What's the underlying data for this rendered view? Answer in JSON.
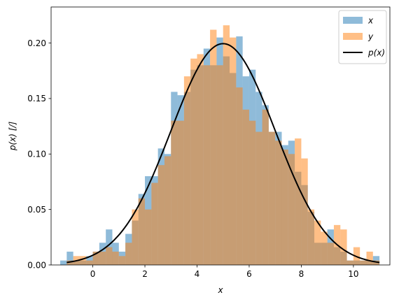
{
  "chart_data": {
    "type": "histogram",
    "title": "",
    "xlabel": "x",
    "ylabel": "p(x) [/]",
    "xlim": [
      -1.6,
      11.4
    ],
    "ylim": [
      0,
      0.2325
    ],
    "xticks": [
      0,
      2,
      4,
      6,
      8,
      10
    ],
    "xtick_labels": [
      "0",
      "2",
      "4",
      "6",
      "8",
      "10"
    ],
    "yticks": [
      0,
      0.05,
      0.1,
      0.15,
      0.2
    ],
    "ytick_labels": [
      "0.00",
      "0.05",
      "0.10",
      "0.15",
      "0.20"
    ],
    "legend_position": "top-right",
    "series": [
      {
        "name": "x",
        "kind": "hist",
        "color": "#1f77b4",
        "alpha": 0.5,
        "bins": [
          -1.25,
          -1.0,
          -0.75,
          -0.5,
          -0.25,
          0.0,
          0.25,
          0.5,
          0.75,
          1.0,
          1.25,
          1.5,
          1.75,
          2.0,
          2.25,
          2.5,
          2.75,
          3.0,
          3.25,
          3.5,
          3.75,
          4.0,
          4.25,
          4.5,
          4.75,
          5.0,
          5.25,
          5.5,
          5.75,
          6.0,
          6.25,
          6.5,
          6.75,
          7.0,
          7.25,
          7.5,
          7.75,
          8.0,
          8.25,
          8.5,
          8.75,
          9.0,
          9.25,
          9.5,
          9.75,
          10.0,
          10.25,
          10.5,
          10.75,
          11.0
        ],
        "values": [
          0.004,
          0.012,
          0.004,
          0.004,
          0.008,
          0.012,
          0.02,
          0.032,
          0.02,
          0.012,
          0.028,
          0.04,
          0.064,
          0.08,
          0.08,
          0.105,
          0.1,
          0.156,
          0.153,
          0.156,
          0.176,
          0.18,
          0.195,
          0.18,
          0.205,
          0.188,
          0.173,
          0.206,
          0.17,
          0.176,
          0.156,
          0.144,
          0.12,
          0.12,
          0.108,
          0.112,
          0.084,
          0.072,
          0.048,
          0.02,
          0.02,
          0.032,
          0.016,
          0.012,
          0.004,
          0.004,
          0.004,
          0.004,
          0.008
        ]
      },
      {
        "name": "y",
        "kind": "hist",
        "color": "#ff7f0e",
        "alpha": 0.5,
        "bins": [
          -1.0,
          -0.75,
          -0.5,
          -0.25,
          0.0,
          0.25,
          0.5,
          0.75,
          1.0,
          1.25,
          1.5,
          1.75,
          2.0,
          2.25,
          2.5,
          2.75,
          3.0,
          3.25,
          3.5,
          3.75,
          4.0,
          4.25,
          4.5,
          4.75,
          5.0,
          5.25,
          5.5,
          5.75,
          6.0,
          6.25,
          6.5,
          6.75,
          7.0,
          7.25,
          7.5,
          7.75,
          8.0,
          8.25,
          8.5,
          8.75,
          9.0,
          9.25,
          9.5,
          9.75,
          10.0,
          10.25,
          10.5,
          10.75,
          11.0
        ],
        "values": [
          0.004,
          0.008,
          0.008,
          0.004,
          0.012,
          0.012,
          0.016,
          0.012,
          0.008,
          0.02,
          0.05,
          0.06,
          0.05,
          0.074,
          0.09,
          0.098,
          0.13,
          0.13,
          0.17,
          0.186,
          0.19,
          0.18,
          0.212,
          0.18,
          0.216,
          0.205,
          0.16,
          0.14,
          0.13,
          0.12,
          0.14,
          0.12,
          0.112,
          0.104,
          0.1,
          0.114,
          0.096,
          0.05,
          0.04,
          0.03,
          0.02,
          0.036,
          0.032,
          0.004,
          0.016,
          0.004,
          0.012,
          0.004
        ]
      },
      {
        "name": "p(x)",
        "kind": "line",
        "color": "#000000",
        "mean": 5,
        "std": 2,
        "x_range": [
          -1,
          11
        ]
      }
    ]
  }
}
